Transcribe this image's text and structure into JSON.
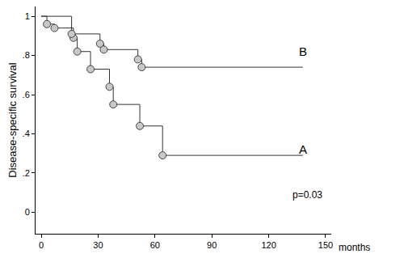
{
  "chart_data": {
    "type": "line",
    "y_label": "Disease-specific survival",
    "x_label": "months",
    "line_style": "step",
    "marker": "circle",
    "color": "#333333",
    "series": [
      {
        "name": "A",
        "x": [
          0,
          3,
          7,
          17,
          19,
          26,
          36,
          38,
          52,
          64,
          138
        ],
        "values": [
          1,
          0.96,
          0.94,
          0.89,
          0.82,
          0.73,
          0.64,
          0.55,
          0.44,
          0.29,
          0.29
        ],
        "censor_x": [
          3,
          7,
          17,
          19,
          26,
          36,
          38,
          52,
          64
        ],
        "censor_values": [
          0.96,
          0.94,
          0.89,
          0.82,
          0.73,
          0.64,
          0.55,
          0.44,
          0.29
        ]
      },
      {
        "name": "B",
        "x": [
          0,
          16,
          31,
          33,
          51,
          53,
          138
        ],
        "values": [
          1,
          0.91,
          0.86,
          0.83,
          0.78,
          0.74,
          0.74
        ],
        "censor_x": [
          16,
          31,
          33,
          51,
          53
        ],
        "censor_values": [
          0.91,
          0.86,
          0.83,
          0.78,
          0.74
        ]
      }
    ],
    "annotations": [
      {
        "text": "A",
        "x": 138,
        "y": 0.32
      },
      {
        "text": "B",
        "x": 138,
        "y": 0.82
      },
      {
        "text": "p=0.03",
        "x": 149,
        "y": 0.09
      }
    ],
    "xlim": [
      -3,
      153
    ],
    "ylim": [
      -0.11,
      1.05
    ],
    "xticks": [
      0,
      30,
      60,
      90,
      120,
      150
    ],
    "yticks": [
      0,
      {
        "value": 0.2,
        "label": ".2"
      },
      {
        "value": 0.4,
        "label": ".4"
      },
      {
        "value": 0.6,
        "label": ".6"
      },
      {
        "value": 0.8,
        "label": ".8"
      },
      1
    ],
    "grid": false,
    "legend": false
  }
}
